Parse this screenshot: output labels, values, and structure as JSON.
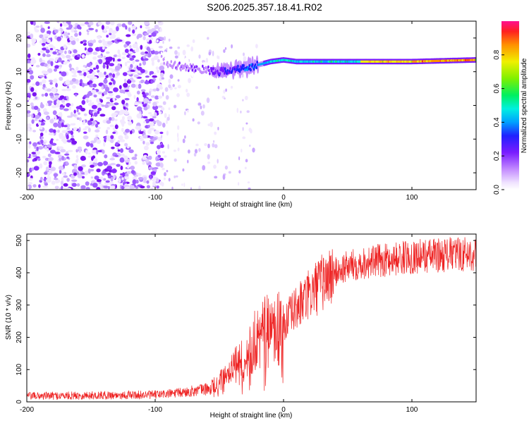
{
  "title": "S206.2025.357.18.41.R02",
  "colors": {
    "snr_line": "#ee2222",
    "axis": "#000000",
    "background": "#ffffff"
  },
  "colorbar": {
    "label": "Normalized spectral amplitude",
    "ticks": [
      "0.0",
      "0.2",
      "0.4",
      "0.6",
      "0.8"
    ],
    "range": [
      0,
      1
    ],
    "colormap": "hsv-rainbow"
  },
  "chart_data": [
    {
      "type": "heatmap",
      "title": "",
      "xlabel": "Height of straight line (km)",
      "ylabel": "Frequency (Hz)",
      "xlim": [
        -200,
        150
      ],
      "ylim": [
        -25,
        25
      ],
      "xticks": [
        "-200",
        "-100",
        "0",
        "100"
      ],
      "yticks": [
        "-20",
        "-10",
        "0",
        "10",
        "20"
      ],
      "ridge": {
        "description_units": "height km -> frequency Hz",
        "x": [
          -95,
          -90,
          -80,
          -70,
          -60,
          -50,
          -40,
          -30,
          -20,
          -10,
          0,
          10,
          20,
          50,
          100,
          150
        ],
        "y": [
          14,
          12.5,
          11.5,
          11,
          10.5,
          10,
          10.5,
          11,
          12,
          13,
          13.5,
          13,
          13,
          13,
          13,
          13.5
        ],
        "amplitude": [
          0.1,
          0.15,
          0.15,
          0.2,
          0.2,
          0.25,
          0.3,
          0.35,
          0.4,
          0.5,
          0.5,
          0.5,
          0.5,
          0.5,
          0.55,
          0.6
        ]
      }
    },
    {
      "type": "line",
      "title": "",
      "xlabel": "Height of straight line (km)",
      "ylabel": "SNR (10 * v/v)",
      "xlim": [
        -200,
        150
      ],
      "ylim": [
        0,
        520
      ],
      "xticks": [
        "-200",
        "-100",
        "0",
        "100"
      ],
      "yticks": [
        "0",
        "100",
        "200",
        "300",
        "400",
        "500"
      ],
      "x": [
        -200,
        -150,
        -100,
        -80,
        -60,
        -50,
        -40,
        -30,
        -20,
        -10,
        0,
        10,
        20,
        30,
        40,
        50,
        60,
        80,
        100,
        120,
        150
      ],
      "y": [
        18,
        20,
        22,
        28,
        40,
        60,
        100,
        140,
        200,
        220,
        240,
        290,
        330,
        370,
        400,
        420,
        430,
        440,
        450,
        455,
        460
      ]
    }
  ]
}
